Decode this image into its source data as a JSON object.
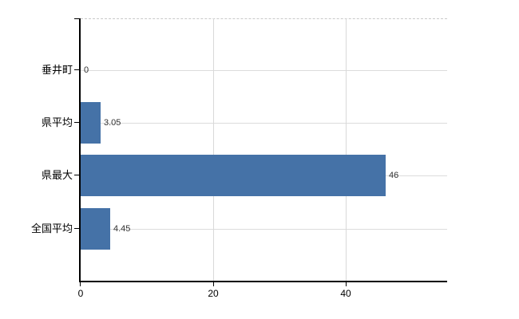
{
  "chart_data": {
    "type": "bar",
    "orientation": "horizontal",
    "title": "",
    "xlabel": "",
    "ylabel": "",
    "categories": [
      "垂井町",
      "県平均",
      "県最大",
      "全国平均"
    ],
    "values": [
      0,
      3.05,
      46,
      4.45
    ],
    "value_labels": [
      "0",
      "3.05",
      "46",
      "4.45"
    ],
    "xticks": [
      "0",
      "20",
      "40"
    ],
    "xtick_values": [
      0,
      20,
      40
    ],
    "xlim": [
      0,
      55.3
    ],
    "grid": "light gray horizontal line per category, vertical lines at 20 and 40, dashed line at plot top",
    "legend": "none",
    "bar_color": "#4572a7",
    "axis_color": "#000000",
    "gridline_color": "#dcdcdc",
    "label_color": "#333333"
  }
}
